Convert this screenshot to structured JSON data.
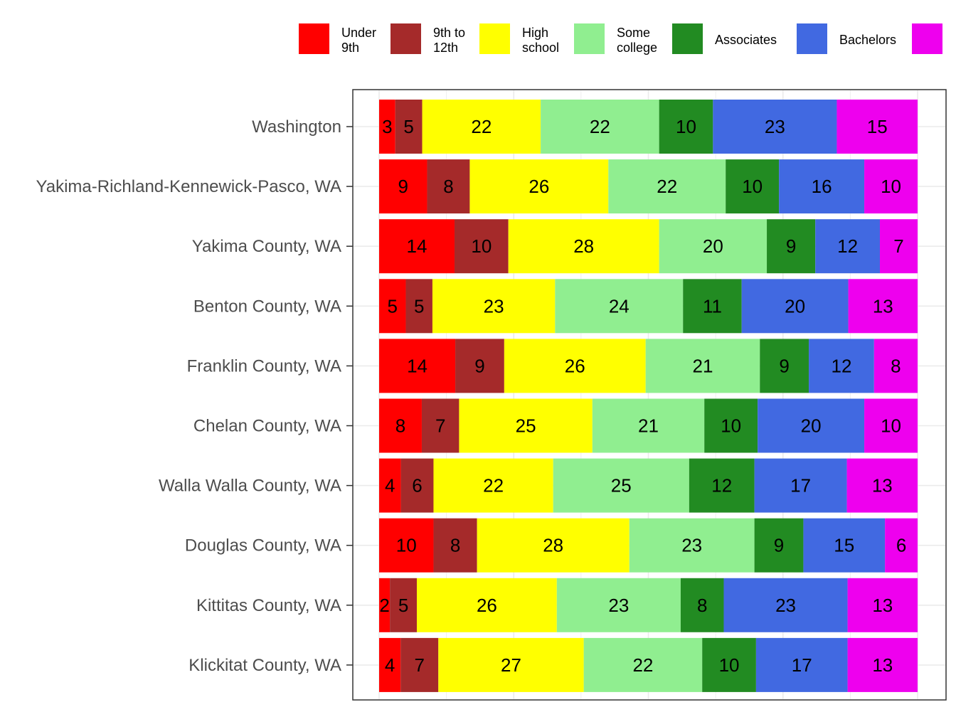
{
  "chart_data": {
    "type": "bar",
    "orientation": "horizontal",
    "stacked": true,
    "percent_stacked": true,
    "grid": true,
    "legend_position": "top",
    "categories": [
      "Washington",
      "Yakima-Richland-Kennewick-Pasco, WA",
      "Yakima County, WA",
      "Benton County, WA",
      "Franklin County, WA",
      "Chelan County, WA",
      "Walla Walla County, WA",
      "Douglas County, WA",
      "Kittitas County, WA",
      "Klickitat County, WA"
    ],
    "series": [
      {
        "name": "Under 9th",
        "color": "#FF0000",
        "values": [
          3,
          9,
          14,
          5,
          14,
          8,
          4,
          10,
          2,
          4
        ]
      },
      {
        "name": "9th to 12th",
        "color": "#A52A2A",
        "values": [
          5,
          8,
          10,
          5,
          9,
          7,
          6,
          8,
          5,
          7
        ]
      },
      {
        "name": "High school",
        "color": "#FFFF00",
        "values": [
          22,
          26,
          28,
          23,
          26,
          25,
          22,
          28,
          26,
          27
        ]
      },
      {
        "name": "Some college",
        "color": "#90EE90",
        "values": [
          22,
          22,
          20,
          24,
          21,
          21,
          25,
          23,
          23,
          22
        ]
      },
      {
        "name": "Associates",
        "color": "#228B22",
        "values": [
          10,
          10,
          9,
          11,
          9,
          10,
          12,
          9,
          8,
          10
        ]
      },
      {
        "name": "Bachelors",
        "color": "#4169E1",
        "values": [
          23,
          16,
          12,
          20,
          12,
          20,
          17,
          15,
          23,
          17
        ]
      },
      {
        "name": "",
        "color": "#EE00EE",
        "values": [
          15,
          10,
          7,
          13,
          8,
          10,
          13,
          6,
          13,
          13
        ]
      }
    ]
  }
}
